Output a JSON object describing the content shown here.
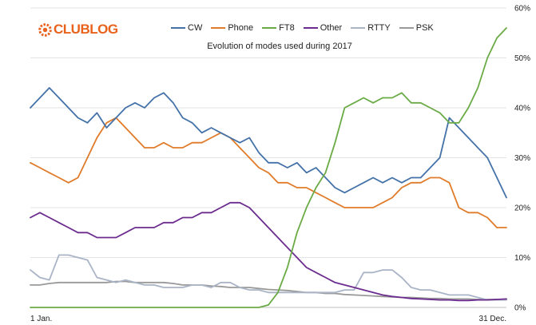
{
  "branding": {
    "logo_text": "CLUBLOG",
    "logo_color": "#e9621c",
    "icon_name": "gear-logo-icon"
  },
  "chart_data": {
    "type": "line",
    "title": "Evolution of modes used during 2017",
    "xlabel": "",
    "ylabel": "",
    "x_tick_labels": [
      "1 Jan.",
      "31 Dec."
    ],
    "x_range": [
      0,
      100
    ],
    "x_note": "percent of year elapsed",
    "y_ticks": [
      "0%",
      "10%",
      "20%",
      "30%",
      "40%",
      "50%",
      "60%"
    ],
    "ylim": [
      0,
      60
    ],
    "y_axis_position": "right",
    "grid": "horizontal",
    "legend_position": "top-center",
    "x": [
      0,
      2,
      4,
      6,
      8,
      10,
      12,
      14,
      16,
      18,
      20,
      22,
      24,
      26,
      28,
      30,
      32,
      34,
      36,
      38,
      40,
      42,
      44,
      46,
      48,
      50,
      52,
      54,
      56,
      58,
      60,
      62,
      64,
      66,
      68,
      70,
      72,
      74,
      76,
      78,
      80,
      82,
      84,
      86,
      88,
      90,
      92,
      94,
      96,
      98,
      100
    ],
    "series": [
      {
        "name": "CW",
        "color": "#4472a8",
        "values": [
          40,
          42,
          44,
          42,
          40,
          38,
          37,
          39,
          36,
          38,
          40,
          41,
          40,
          42,
          43,
          41,
          38,
          37,
          35,
          36,
          35,
          34,
          33,
          34,
          31,
          29,
          29,
          28,
          29,
          27,
          28,
          26,
          24,
          23,
          24,
          25,
          26,
          25,
          26,
          25,
          26,
          26,
          28,
          30,
          38,
          36,
          34,
          32,
          30,
          26,
          22
        ]
      },
      {
        "name": "Phone",
        "color": "#e07b2a",
        "values": [
          29,
          28,
          27,
          26,
          25,
          26,
          30,
          34,
          37,
          38,
          36,
          34,
          32,
          32,
          33,
          32,
          32,
          33,
          33,
          34,
          35,
          34,
          32,
          30,
          28,
          27,
          25,
          25,
          24,
          24,
          23,
          22,
          21,
          20,
          20,
          20,
          20,
          21,
          22,
          24,
          25,
          25,
          26,
          26,
          25,
          20,
          19,
          19,
          18,
          16,
          16
        ]
      },
      {
        "name": "FT8",
        "color": "#6aab46",
        "values": [
          0,
          0,
          0,
          0,
          0,
          0,
          0,
          0,
          0,
          0,
          0,
          0,
          0,
          0,
          0,
          0,
          0,
          0,
          0,
          0,
          0,
          0,
          0,
          0,
          0,
          0.5,
          3,
          8,
          15,
          20,
          24,
          27,
          33,
          40,
          41,
          42,
          41,
          42,
          42,
          43,
          41,
          41,
          40,
          39,
          37,
          37,
          40,
          44,
          50,
          54,
          56
        ]
      },
      {
        "name": "Other",
        "color": "#6b2c8e",
        "values": [
          18,
          19,
          18,
          17,
          16,
          15,
          15,
          14,
          14,
          14,
          15,
          16,
          16,
          16,
          17,
          17,
          18,
          18,
          19,
          19,
          20,
          21,
          21,
          20,
          18,
          16,
          14,
          12,
          10,
          8,
          7,
          6,
          5,
          4.5,
          4,
          3.5,
          3,
          2.5,
          2.2,
          2,
          1.8,
          1.7,
          1.6,
          1.5,
          1.5,
          1.4,
          1.4,
          1.5,
          1.5,
          1.6,
          1.7
        ]
      },
      {
        "name": "RTTY",
        "color": "#a9b4c6",
        "values": [
          7.5,
          6,
          5.5,
          10.5,
          10.5,
          10,
          9.5,
          6,
          5.5,
          5,
          5.5,
          5,
          4.5,
          4.5,
          4,
          4,
          4,
          4.5,
          4.5,
          4,
          5,
          5,
          4,
          3.5,
          3.5,
          3,
          3,
          3,
          3,
          3,
          3,
          3,
          3,
          3.5,
          3.5,
          7,
          7,
          7.5,
          7.5,
          6,
          4,
          3.5,
          3.5,
          3,
          2.5,
          2.5,
          2.5,
          2,
          1.5,
          1.5,
          1.5
        ]
      },
      {
        "name": "PSK",
        "color": "#999999",
        "values": [
          4.5,
          4.5,
          4.8,
          5,
          5,
          5,
          5,
          5,
          5,
          5.2,
          5.2,
          5,
          5,
          5,
          5,
          4.8,
          4.5,
          4.5,
          4.5,
          4.3,
          4.2,
          4,
          4,
          4,
          3.8,
          3.6,
          3.5,
          3.4,
          3.2,
          3,
          3,
          2.8,
          2.8,
          2.6,
          2.5,
          2.4,
          2.3,
          2.2,
          2.1,
          2,
          2,
          1.9,
          1.8,
          1.8,
          1.7,
          1.7,
          1.7,
          1.6,
          1.6,
          1.6,
          1.6
        ]
      }
    ]
  }
}
